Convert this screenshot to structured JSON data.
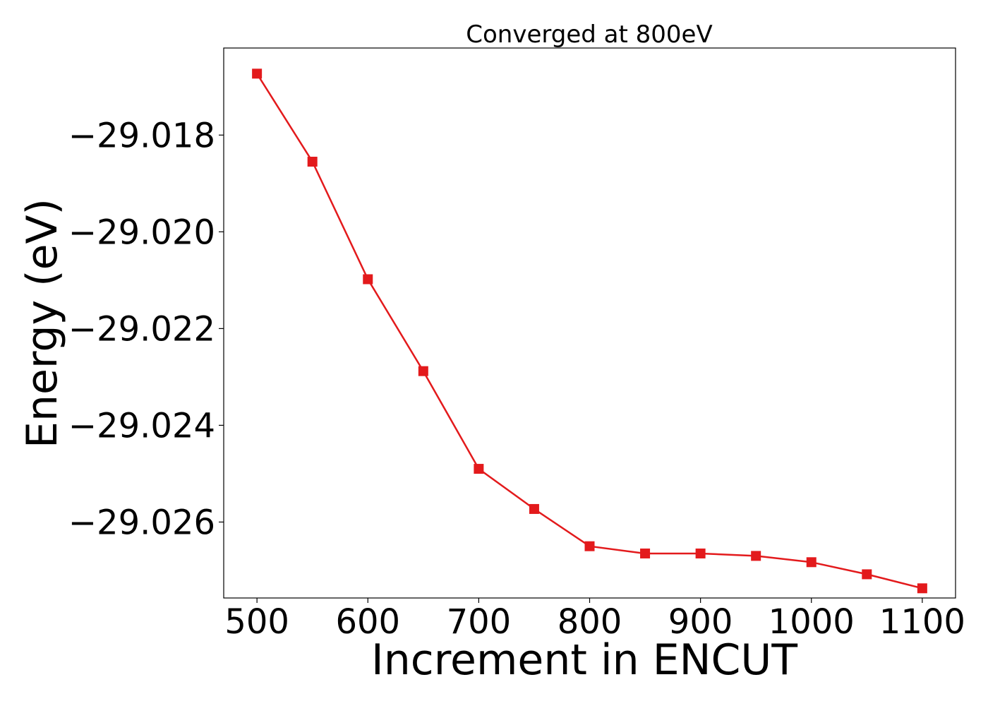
{
  "chart_data": {
    "type": "line",
    "title": "Converged at 800eV",
    "xlabel": "Increment in ENCUT",
    "ylabel": "Energy (eV)",
    "x": [
      500,
      550,
      600,
      650,
      700,
      750,
      800,
      850,
      900,
      950,
      1000,
      1050,
      1100
    ],
    "series": [
      {
        "values": [
          -29.01673,
          -29.01855,
          -29.02098,
          -29.02288,
          -29.0249,
          -29.02573,
          -29.0265,
          -29.02665,
          -29.02665,
          -29.0267,
          -29.02683,
          -29.02708,
          -29.02737
        ],
        "color": "#e31a1c",
        "marker": "square"
      }
    ],
    "xlim": [
      470,
      1130
    ],
    "ylim": [
      -29.0162,
      -29.02757
    ],
    "x_ticks": [
      500,
      600,
      700,
      800,
      900,
      1000,
      1100
    ],
    "x_tick_labels": [
      "500",
      "600",
      "700",
      "800",
      "900",
      "1000",
      "1100"
    ],
    "y_ticks": [
      -29.018,
      -29.02,
      -29.022,
      -29.024,
      -29.026
    ],
    "y_tick_labels": [
      "−29.018",
      "−29.020",
      "−29.022",
      "−29.024",
      "−29.026"
    ],
    "grid": false,
    "legend": "none"
  }
}
